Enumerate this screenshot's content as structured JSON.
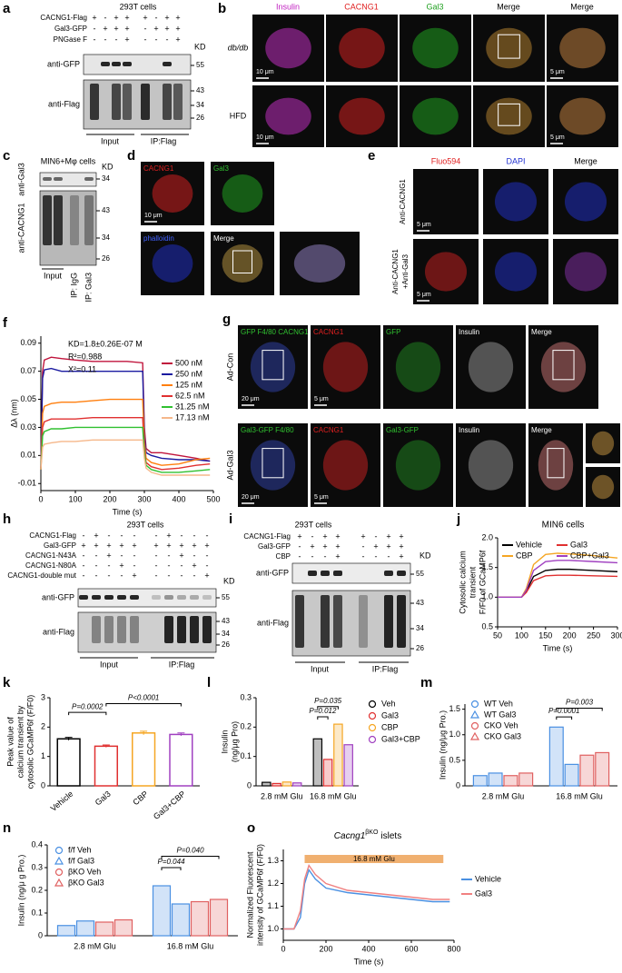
{
  "panels": {
    "a": {
      "letter": "a",
      "header": "293T cells",
      "kd": "KD",
      "rows": [
        {
          "label": "CACNG1-Flag",
          "signs": [
            "+",
            "-",
            "+",
            "+",
            "+",
            "-",
            "+",
            "+"
          ]
        },
        {
          "label": "Gal3-GFP",
          "signs": [
            "-",
            "+",
            "+",
            "+",
            "-",
            "+",
            "+",
            "+"
          ]
        },
        {
          "label": "PNGase F",
          "signs": [
            "-",
            "-",
            "-",
            "+",
            "-",
            "-",
            "-",
            "+"
          ]
        }
      ],
      "blots": [
        {
          "label": "anti-GFP",
          "markers": [
            "55"
          ]
        },
        {
          "label": "anti-Flag",
          "markers": [
            "43",
            "34",
            "26"
          ]
        }
      ],
      "groups": [
        "Input",
        "IP:Flag"
      ]
    },
    "b": {
      "letter": "b",
      "columns": [
        "Insulin",
        "CACNG1",
        "Gal3",
        "Merge",
        "Merge"
      ],
      "rows": [
        "db/db",
        "HFD"
      ],
      "scale_labels": [
        "10 μm",
        "5 μm"
      ]
    },
    "c": {
      "letter": "c",
      "header": "MIN6+Mφ cells",
      "kd": "KD",
      "blots": [
        {
          "label": "anti-Gal3",
          "markers": [
            "34"
          ]
        },
        {
          "label": "anti-CACNG1",
          "markers": [
            "43",
            "34",
            "26"
          ]
        }
      ],
      "groups": [
        "Input",
        "IP: IgG",
        "IP: Gal3"
      ]
    },
    "d": {
      "letter": "d",
      "columns": [
        "CACNG1",
        "Gal3",
        "phalloidin",
        "Merge"
      ],
      "scale_label": "10 μm"
    },
    "e": {
      "letter": "e",
      "columns": [
        "Fluo594",
        "DAPI",
        "Merge"
      ],
      "rows": [
        [
          "Anti-CACNG1"
        ],
        [
          "Anti-CACNG1",
          "+Anti-Gal3"
        ]
      ],
      "scale_label": "5 μm"
    },
    "g": {
      "letter": "g",
      "rows": [
        "Ad-Con",
        "Ad-Gal3"
      ],
      "row_columns": [
        [
          "GFP F4/80 CACNG1",
          "CACNG1",
          "GFP",
          "Insulin",
          "Merge"
        ],
        [
          "Gal3-GFP F4/80",
          "CACNG1",
          "Gal3-GFP",
          "Insulin",
          "Merge"
        ]
      ],
      "scale_labels": [
        "20 μm",
        "5 μm"
      ]
    },
    "h": {
      "letter": "h",
      "header": "293T cells",
      "kd": "KD",
      "rows": [
        {
          "label": "CACNG1-Flag",
          "signs": [
            "-",
            "+",
            "-",
            "-",
            "-",
            "-",
            "+",
            "-",
            "-",
            "-"
          ]
        },
        {
          "label": "Gal3-GFP",
          "signs": [
            "+",
            "+",
            "+",
            "+",
            "+",
            "+",
            "+",
            "+",
            "+",
            "+"
          ]
        },
        {
          "label": "CACNG1-N43A",
          "signs": [
            "-",
            "-",
            "+",
            "-",
            "-",
            "-",
            "-",
            "+",
            "-",
            "-"
          ]
        },
        {
          "label": "CACNG1-N80A",
          "signs": [
            "-",
            "-",
            "-",
            "+",
            "-",
            "-",
            "-",
            "-",
            "+",
            "-"
          ]
        },
        {
          "label": "CACNG1-double mut",
          "signs": [
            "-",
            "-",
            "-",
            "-",
            "+",
            "-",
            "-",
            "-",
            "-",
            "+"
          ]
        }
      ],
      "blots": [
        {
          "label": "anti-GFP",
          "markers": [
            "55"
          ]
        },
        {
          "label": "anti-Flag",
          "markers": [
            "43",
            "34",
            "26"
          ]
        }
      ],
      "groups": [
        "Input",
        "IP:Flag"
      ]
    },
    "i": {
      "letter": "i",
      "header": "293T cells",
      "kd": "KD",
      "rows": [
        {
          "label": "CACNG1-Flag",
          "signs": [
            "+",
            "-",
            "+",
            "+",
            "+",
            "-",
            "+",
            "+"
          ]
        },
        {
          "label": "Gal3-GFP",
          "signs": [
            "-",
            "+",
            "+",
            "+",
            "-",
            "+",
            "+",
            "+"
          ]
        },
        {
          "label": "CBP",
          "signs": [
            "-",
            "-",
            "-",
            "+",
            "-",
            "-",
            "-",
            "+"
          ]
        }
      ],
      "blots": [
        {
          "label": "anti-GFP",
          "markers": [
            "55"
          ]
        },
        {
          "label": "anti-Flag",
          "markers": [
            "43",
            "34",
            "26"
          ]
        }
      ],
      "groups": [
        "Input",
        "IP:Flag"
      ]
    }
  },
  "chart_data": [
    {
      "type": "line",
      "panel": "f",
      "xlabel": "Time (s)",
      "ylabel": "Δλ (nm)",
      "annotations": [
        "KD=1.8±0.26E-07 M",
        "R²=0.988",
        "X²=0.11"
      ],
      "x": [
        0,
        5,
        10,
        30,
        60,
        100,
        150,
        200,
        250,
        295,
        300,
        305,
        320,
        350,
        400,
        450,
        490
      ],
      "xlim": [
        0,
        500
      ],
      "xticks": [
        0,
        100,
        200,
        300,
        400,
        500
      ],
      "ylim": [
        -0.015,
        0.095
      ],
      "yticks": [
        -0.01,
        0.01,
        0.03,
        0.05,
        0.07,
        0.09
      ],
      "series": [
        {
          "name": "500 nM",
          "color": "#c0143c",
          "values": [
            0,
            0.07,
            0.078,
            0.08,
            0.079,
            0.078,
            0.077,
            0.077,
            0.077,
            0.076,
            0.03,
            0.015,
            0.012,
            0.012,
            0.01,
            0.008,
            0.006
          ]
        },
        {
          "name": "250 nM",
          "color": "#1a1aa0",
          "values": [
            0,
            0.065,
            0.071,
            0.072,
            0.07,
            0.07,
            0.07,
            0.07,
            0.07,
            0.07,
            0.025,
            0.012,
            0.01,
            0.008,
            0.007,
            0.007,
            0.006
          ]
        },
        {
          "name": "125 nM",
          "color": "#ff7f0e",
          "values": [
            0,
            0.04,
            0.045,
            0.047,
            0.048,
            0.048,
            0.049,
            0.05,
            0.05,
            0.05,
            0.02,
            0.008,
            0.005,
            0.003,
            0.004,
            0.007,
            0.008
          ]
        },
        {
          "name": "62.5 nM",
          "color": "#e03030",
          "values": [
            0,
            0.03,
            0.034,
            0.036,
            0.036,
            0.036,
            0.037,
            0.037,
            0.037,
            0.037,
            0.015,
            0.005,
            0.002,
            0,
            0.001,
            0.003,
            0.004
          ]
        },
        {
          "name": "31.25 nM",
          "color": "#30c030",
          "values": [
            0,
            0.024,
            0.027,
            0.029,
            0.029,
            0.03,
            0.03,
            0.03,
            0.03,
            0.03,
            0.012,
            0.003,
            0,
            -0.002,
            -0.002,
            -0.001,
            0
          ]
        },
        {
          "name": "17.13 nM",
          "color": "#f5b78a",
          "values": [
            0,
            0.016,
            0.018,
            0.019,
            0.02,
            0.02,
            0.021,
            0.021,
            0.021,
            0.021,
            0.008,
            0.001,
            -0.002,
            -0.004,
            -0.004,
            -0.004,
            -0.004
          ]
        }
      ]
    },
    {
      "type": "line",
      "panel": "j",
      "title": "MIN6 cells",
      "xlabel": "Time (s)",
      "ylabel": [
        "Cytosolic calcium",
        "transient",
        "F/F0 of GCaMP6f"
      ],
      "x": [
        50,
        75,
        100,
        110,
        125,
        150,
        175,
        200,
        250,
        300
      ],
      "xlim": [
        50,
        300
      ],
      "xticks": [
        50,
        100,
        150,
        200,
        250,
        300
      ],
      "ylim": [
        0.5,
        2.0
      ],
      "yticks": [
        0.5,
        {
          "value": 1,
          "label": "1.0"
        },
        1.5,
        {
          "value": 2,
          "label": "2.0"
        }
      ],
      "series": [
        {
          "name": "Vehicle",
          "color": "#000000",
          "values": [
            1,
            1,
            1,
            1.1,
            1.35,
            1.45,
            1.47,
            1.47,
            1.45,
            1.43
          ]
        },
        {
          "name": "Gal3",
          "color": "#e03030",
          "values": [
            1,
            1,
            1,
            1.08,
            1.28,
            1.36,
            1.37,
            1.37,
            1.36,
            1.35
          ]
        },
        {
          "name": "CBP",
          "color": "#f5a623",
          "values": [
            1,
            1,
            1,
            1.15,
            1.55,
            1.72,
            1.74,
            1.73,
            1.7,
            1.66
          ]
        },
        {
          "name": "CBP+Gal3",
          "color": "#a040c0",
          "values": [
            1,
            1,
            1,
            1.12,
            1.45,
            1.6,
            1.62,
            1.62,
            1.6,
            1.58
          ]
        }
      ]
    },
    {
      "type": "bar",
      "panel": "k",
      "ylabel": [
        "Peak value of",
        "calcium transient by",
        "cytosolic GCaMP6f (F/F0)"
      ],
      "categories": [
        "Vehicle",
        "Gal3",
        "CBP",
        "Gal3+CBP"
      ],
      "values": [
        1.6,
        1.35,
        1.8,
        1.75
      ],
      "errors": [
        0.05,
        0.04,
        0.06,
        0.05
      ],
      "colors": [
        "#000000",
        "#e03030",
        "#f5a623",
        "#a040c0"
      ],
      "ylim": [
        0,
        3
      ],
      "yticks": [
        0,
        1,
        2,
        3
      ],
      "annotations": [
        "P=0.0002",
        "P<0.0001"
      ]
    },
    {
      "type": "grouped_bar",
      "panel": "l",
      "ylabel": [
        "Insulin",
        "(ng/μg Pro)"
      ],
      "categories": [
        "2.8 mM Glu",
        "16.8 mM Glu"
      ],
      "ylim": [
        0,
        0.3
      ],
      "yticks": [
        0,
        0.1,
        0.2,
        0.3
      ],
      "annotations": [
        "P=0.012",
        "P=0.035"
      ],
      "series": [
        {
          "name": "Veh",
          "color": "#000000",
          "marker": "circle",
          "values": [
            0.012,
            0.16
          ]
        },
        {
          "name": "Gal3",
          "color": "#e03030",
          "marker": "circle",
          "values": [
            0.008,
            0.09
          ]
        },
        {
          "name": "CBP",
          "color": "#f5a623",
          "marker": "circle",
          "values": [
            0.013,
            0.21
          ]
        },
        {
          "name": "Gal3+CBP",
          "color": "#a040c0",
          "marker": "circle",
          "values": [
            0.01,
            0.14
          ]
        }
      ]
    },
    {
      "type": "grouped_bar",
      "panel": "m",
      "ylabel": "Insulin (ng/μg Pro.)",
      "categories": [
        "2.8 mM Glu",
        "16.8 mM Glu"
      ],
      "ylim": [
        0,
        1.6
      ],
      "yticks": [
        0,
        0.5,
        {
          "value": 1,
          "label": "1.0"
        },
        1.5
      ],
      "annotations": [
        "P=0.0001",
        "P=0.003"
      ],
      "series": [
        {
          "name": "WT Veh",
          "color": "#4a90e2",
          "marker": "circle",
          "values": [
            0.2,
            1.15
          ]
        },
        {
          "name": "WT Gal3",
          "color": "#4a90e2",
          "marker": "triangle",
          "values": [
            0.25,
            0.42
          ]
        },
        {
          "name": "CKO Veh",
          "color": "#e06060",
          "marker": "circle",
          "values": [
            0.2,
            0.6
          ]
        },
        {
          "name": "CKO Gal3",
          "color": "#e06060",
          "marker": "triangle",
          "values": [
            0.25,
            0.65
          ]
        }
      ]
    },
    {
      "type": "grouped_bar",
      "panel": "n",
      "ylabel": "Insulin (ng/μ g Pro.)",
      "categories": [
        "2.8 mM Glu",
        "16.8 mM Glu"
      ],
      "ylim": [
        0,
        0.4
      ],
      "yticks": [
        0,
        0.1,
        0.2,
        0.3,
        0.4
      ],
      "annotations": [
        "P=0.044",
        "P=0.040"
      ],
      "series": [
        {
          "name": "f/f Veh",
          "color": "#4a90e2",
          "marker": "circle",
          "values": [
            0.045,
            0.22
          ]
        },
        {
          "name": "f/f Gal3",
          "color": "#4a90e2",
          "marker": "triangle",
          "values": [
            0.065,
            0.14
          ]
        },
        {
          "name": "βKO Veh",
          "color": "#e06060",
          "marker": "circle",
          "values": [
            0.06,
            0.15
          ]
        },
        {
          "name": "βKO Gal3",
          "color": "#e06060",
          "marker": "triangle",
          "values": [
            0.07,
            0.16
          ]
        }
      ]
    },
    {
      "type": "line",
      "panel": "o",
      "title_parts": [
        "Cacng1",
        "βKO",
        "islets"
      ],
      "xlabel": "Time (s)",
      "ylabel": [
        "Normalized Fluorescent",
        "intensity of GCaMP6f (F/F0)"
      ],
      "glucose_bar": {
        "label": "16.8 mM Glu",
        "x": [
          100,
          750
        ]
      },
      "x": [
        0,
        50,
        80,
        100,
        120,
        150,
        200,
        300,
        400,
        500,
        600,
        700,
        780
      ],
      "xlim": [
        0,
        800
      ],
      "xticks": [
        0,
        200,
        400,
        600,
        800
      ],
      "ylim": [
        0.95,
        1.35
      ],
      "yticks": [
        {
          "value": 1,
          "label": "1.0"
        },
        1.1,
        1.2,
        1.3
      ],
      "series": [
        {
          "name": "Vehicle",
          "color": "#4a90e2",
          "values": [
            1.0,
            1.0,
            1.05,
            1.2,
            1.26,
            1.22,
            1.18,
            1.16,
            1.15,
            1.14,
            1.13,
            1.12,
            1.12
          ]
        },
        {
          "name": "Gal3",
          "color": "#f08080",
          "values": [
            1.0,
            1.0,
            1.08,
            1.22,
            1.28,
            1.24,
            1.2,
            1.17,
            1.16,
            1.15,
            1.14,
            1.13,
            1.13
          ]
        }
      ]
    }
  ]
}
